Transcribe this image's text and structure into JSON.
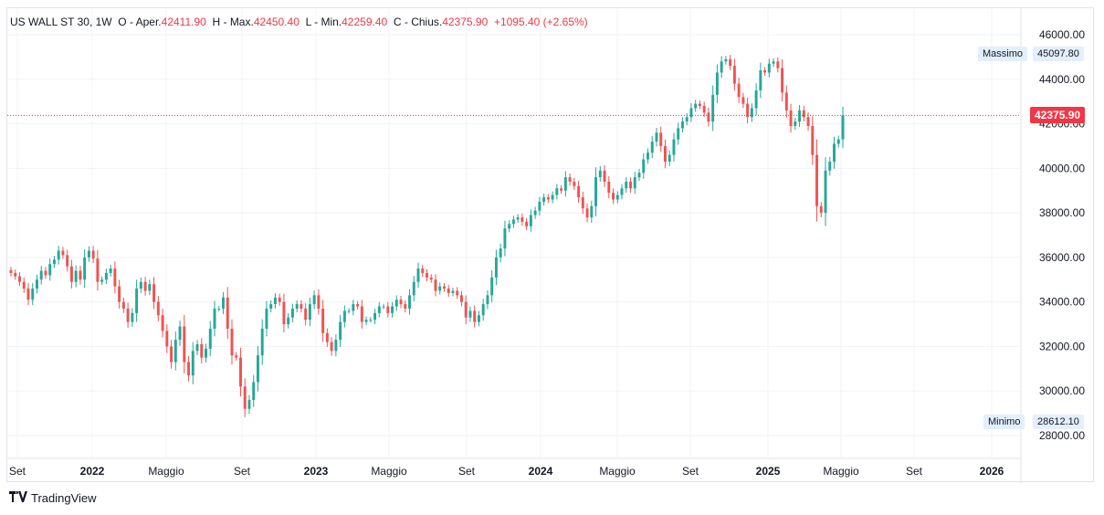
{
  "legend": {
    "symbol": "US WALL ST 30",
    "interval": "1W",
    "open_label": "O - Aper.",
    "open": "42411.90",
    "high_label": "H - Max.",
    "high": "42450.40",
    "low_label": "L - Min.",
    "low": "42259.40",
    "close_label": "C - Chius.",
    "close": "42375.90",
    "change": "+1095.40 (+2.65%)"
  },
  "markers": {
    "max_label": "Massimo",
    "max_value": "45097.80",
    "min_label": "Minimo",
    "min_value": "28612.10",
    "last_price": "42375.90"
  },
  "brand": {
    "name": "TradingView"
  },
  "colors": {
    "up": "#26a69a",
    "down": "#ef5350",
    "last_price": "#f23645"
  },
  "chart_data": {
    "type": "candlestick",
    "y_ticks": [
      "46000.00",
      "44000.00",
      "42000.00",
      "40000.00",
      "38000.00",
      "36000.00",
      "34000.00",
      "32000.00",
      "30000.00",
      "28000.00"
    ],
    "x_ticks": [
      "Set",
      "2022",
      "Maggio",
      "Set",
      "2023",
      "Maggio",
      "Set",
      "2024",
      "Maggio",
      "Set",
      "2025",
      "Maggio",
      "Set",
      "2026"
    ],
    "ylim": [
      27400,
      46300
    ],
    "grid": true,
    "series": [
      {
        "name": "US WALL ST 30",
        "close": [
          35300,
          35150,
          34900,
          34600,
          34100,
          34600,
          35000,
          35400,
          35200,
          35700,
          35900,
          36300,
          36100,
          35600,
          34900,
          35400,
          35000,
          36000,
          36300,
          35950,
          34900,
          35000,
          35300,
          35500,
          34700,
          34000,
          33700,
          33100,
          33500,
          34600,
          34900,
          34500,
          34800,
          34000,
          33400,
          32700,
          32000,
          31300,
          32300,
          32900,
          31300,
          30700,
          31800,
          32100,
          31500,
          31900,
          32800,
          33700,
          33700,
          34200,
          32800,
          31600,
          31500,
          30200,
          29200,
          29600,
          30400,
          31600,
          32800,
          33700,
          33900,
          34200,
          34000,
          33000,
          33300,
          33700,
          33900,
          33700,
          33200,
          33900,
          34300,
          33700,
          32600,
          32200,
          31800,
          32300,
          33100,
          33600,
          33600,
          33900,
          33800,
          33100,
          33200,
          33200,
          33500,
          33800,
          33800,
          33500,
          33800,
          34100,
          33900,
          33700,
          34300,
          34900,
          35500,
          35300,
          35100,
          35000,
          34500,
          34700,
          34600,
          34400,
          34500,
          34300,
          34000,
          33300,
          33600,
          33100,
          33400,
          33900,
          34300,
          35100,
          36000,
          36400,
          37300,
          37500,
          37700,
          37800,
          37600,
          37400,
          37900,
          38100,
          38500,
          38700,
          38600,
          38800,
          39100,
          39000,
          39600,
          39400,
          39200,
          38700,
          38200,
          37800,
          38300,
          39600,
          39900,
          39400,
          38900,
          38600,
          38800,
          39100,
          39400,
          39100,
          39600,
          39800,
          40400,
          40700,
          41200,
          41600,
          41000,
          40300,
          40600,
          41300,
          41800,
          42100,
          42300,
          42700,
          42900,
          42800,
          42500,
          42100,
          43300,
          44300,
          44800,
          44900,
          44600,
          43800,
          43200,
          42900,
          42300,
          42700,
          43500,
          44400,
          44300,
          44700,
          44800,
          44500,
          43400,
          42600,
          41900,
          42100,
          42600,
          42300,
          41900,
          40600,
          38300,
          38000,
          39900,
          40300,
          41100,
          41300,
          42376
        ]
      }
    ]
  }
}
